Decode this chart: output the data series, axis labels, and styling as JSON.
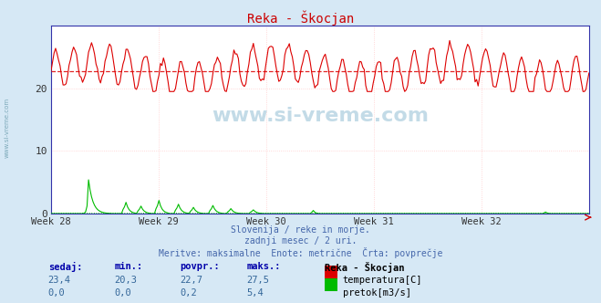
{
  "title": "Reka - Škocjan",
  "title_color": "#cc0000",
  "bg_color": "#d6e8f5",
  "plot_bg_color": "#ffffff",
  "xlabel_weeks": [
    "Week 28",
    "Week 29",
    "Week 30",
    "Week 31",
    "Week 32"
  ],
  "ylim": [
    0,
    30
  ],
  "yticks": [
    0,
    10,
    20
  ],
  "temp_avg": 22.7,
  "flow_avg": 0.2,
  "temp_line_color": "#dd0000",
  "flow_line_color": "#00bb00",
  "avg_line_color": "#dd0000",
  "flow_avg_color": "#00bb00",
  "spine_color": "#3333aa",
  "grid_color": "#ffcccc",
  "watermark_text": "www.si-vreme.com",
  "watermark_color": "#aaccdd",
  "info_line1": "Slovenija / reke in morje.",
  "info_line2": "zadnji mesec / 2 uri.",
  "info_line3": "Meritve: maksimalne  Enote: metrične  Črta: povprečje",
  "info_color": "#4466aa",
  "legend_station": "Reka - Škocjan",
  "legend_temp": "temperatura[C]",
  "legend_flow": "pretok[m3/s]",
  "table_headers": [
    "sedaj:",
    "min.:",
    "povpr.:",
    "maks.:"
  ],
  "table_header_color": "#0000aa",
  "table_val_color": "#336699",
  "table_temp_vals": [
    "23,4",
    "20,3",
    "22,7",
    "27,5"
  ],
  "table_flow_vals": [
    "0,0",
    "0,0",
    "0,2",
    "5,4"
  ],
  "temp_swatch_color": "#dd0000",
  "flow_swatch_color": "#00bb00",
  "sidebar_text": "www.si-vreme.com",
  "sidebar_color": "#6699aa"
}
